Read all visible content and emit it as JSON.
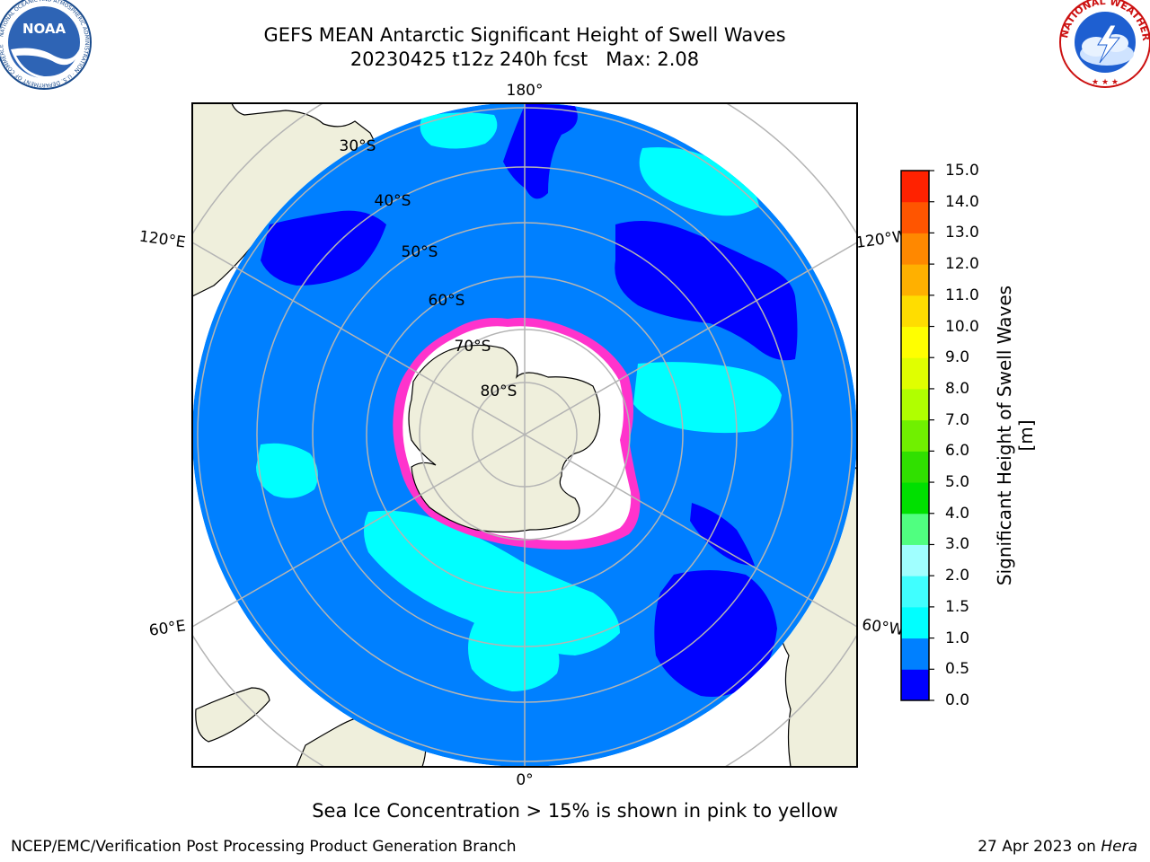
{
  "header": {
    "title_line1": "GEFS MEAN Antarctic Significant Height of Swell Waves",
    "title_line2": "20230425 t12z 240h fcst   Max: 2.08"
  },
  "logos": {
    "noaa": {
      "label": "NOAA",
      "ring_text": "NATIONAL OCEANIC AND ATMOSPHERIC ADMINISTRATION · U.S. DEPARTMENT OF COMMERCE"
    },
    "nws": {
      "ring_text": "NATIONAL WEATHER SERVICE"
    }
  },
  "map": {
    "meridian_labels": {
      "top": "180°",
      "bottom": "0°",
      "left_upper": "120°E",
      "left_lower": "60°E",
      "right_upper": "120°W",
      "right_lower": "60°W"
    },
    "latitude_labels": [
      "30°S",
      "40°S",
      "50°S",
      "60°S",
      "70°S",
      "80°S"
    ],
    "colors": {
      "ocean": "#0080ff",
      "land": "#efefdc",
      "ice_edge": "#ff33cc",
      "ice_core": "#ffffff",
      "grid": "#b4b4b4"
    }
  },
  "colorbar": {
    "title": "Significant Height of Swell Waves [m]",
    "ticks": [
      "0.0",
      "0.5",
      "1.0",
      "1.5",
      "2.0",
      "3.0",
      "4.0",
      "5.0",
      "6.0",
      "7.0",
      "8.0",
      "9.0",
      "10.0",
      "11.0",
      "12.0",
      "13.0",
      "14.0",
      "15.0"
    ],
    "colors": [
      "#0000ff",
      "#0080ff",
      "#00ffff",
      "#40ffff",
      "#a0ffff",
      "#50ff80",
      "#00e000",
      "#30e000",
      "#70f000",
      "#b0ff00",
      "#e0ff00",
      "#ffff00",
      "#ffdd00",
      "#ffb000",
      "#ff8800",
      "#ff5500",
      "#ff2200"
    ]
  },
  "footnote": "Sea Ice Concentration > 15% is shown in pink to yellow",
  "footer": {
    "credit": "NCEP/EMC/Verification Post Processing Product Generation Branch",
    "date_prefix": "27 Apr 2023 on ",
    "date_machine": "Hera"
  }
}
